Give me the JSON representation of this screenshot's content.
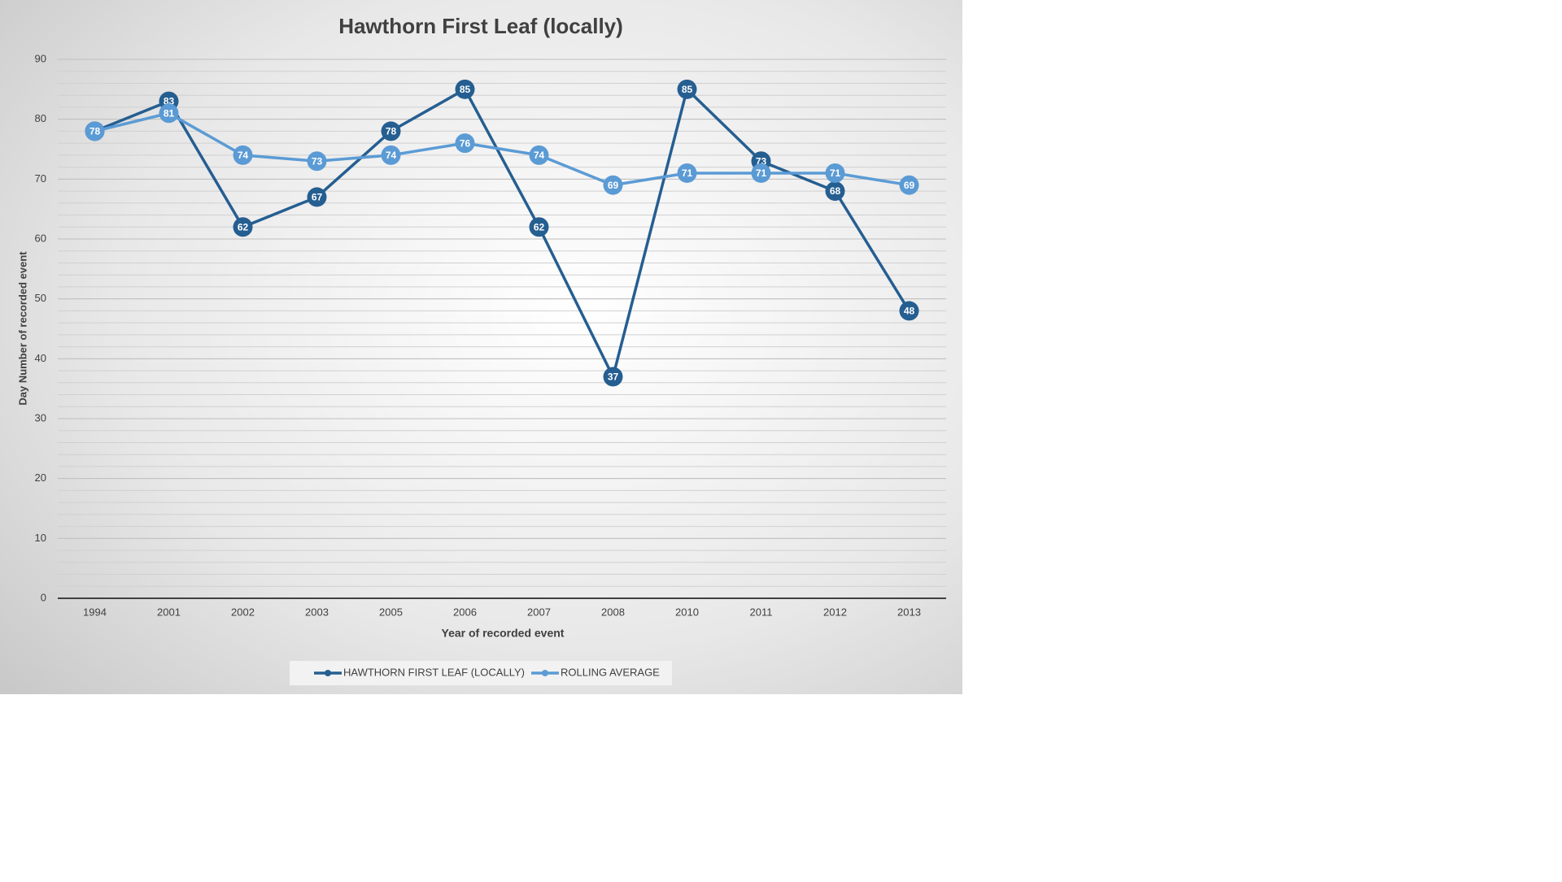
{
  "chart_data": {
    "type": "line",
    "title": "Hawthorn First Leaf (locally)",
    "x_label": "Year of recorded  event",
    "y_label": "Day Number of recorded  event",
    "categories": [
      "1994",
      "2001",
      "2002",
      "2003",
      "2005",
      "2006",
      "2007",
      "2008",
      "2010",
      "2011",
      "2012",
      "2013"
    ],
    "series": [
      {
        "name": "HAWTHORN FIRST LEAF (LOCALLY)",
        "color": "#255e91",
        "values": [
          78,
          83,
          62,
          67,
          78,
          85,
          62,
          37,
          85,
          73,
          68,
          48
        ]
      },
      {
        "name": "ROLLING AVERAGE",
        "color": "#5b9bd5",
        "values": [
          78,
          81,
          74,
          73,
          74,
          76,
          74,
          69,
          71,
          71,
          71,
          69
        ]
      }
    ],
    "ylim": [
      0,
      90
    ],
    "yticks": [
      0,
      10,
      20,
      30,
      40,
      50,
      60,
      70,
      80,
      90
    ],
    "grid": true,
    "legend": "bottom",
    "data_labels": true
  }
}
